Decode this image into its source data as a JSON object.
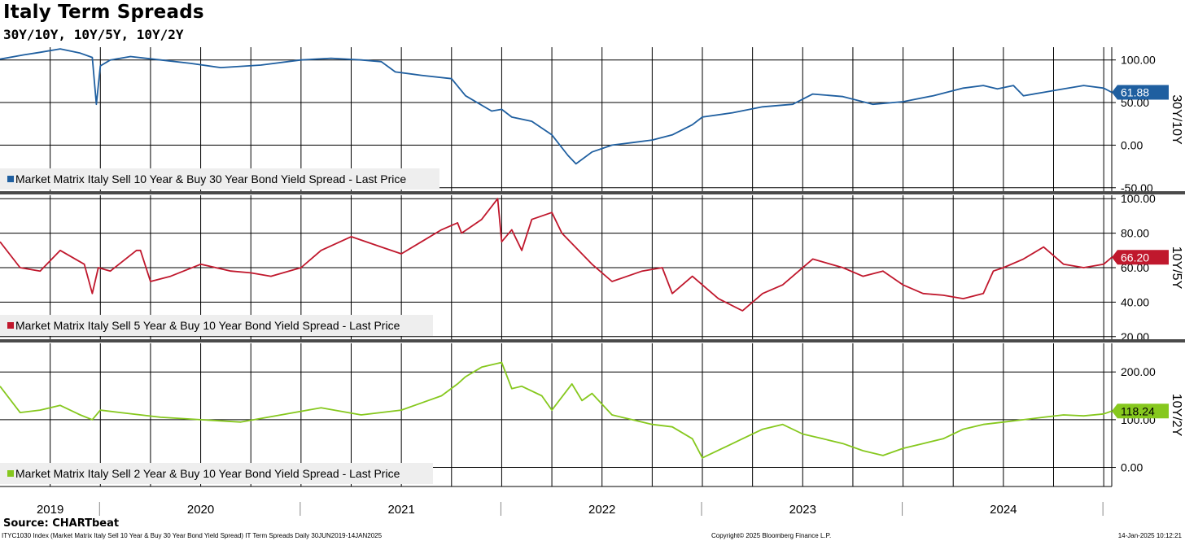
{
  "title": "Italy Term Spreads",
  "subtitle": "30Y/10Y, 10Y/5Y, 10Y/2Y",
  "source": "Source: CHARTbeat",
  "footer": {
    "left": "ITYC1030 Index (Market Matrix Italy Sell 10 Year & Buy 30 Year Bond Yield Spread) IT Term Spreads  Daily 30JUN2019-14JAN2025",
    "center": "Copyright© 2025 Bloomberg Finance L.P.",
    "right": "14-Jan-2025 10:12:21"
  },
  "colors": {
    "s30y10y": "#1f5fa0",
    "s10y5y": "#c0182d",
    "s10y2y": "#86c81e",
    "grid": "#000000",
    "divider": "#4a4a4a",
    "legend_bg": "#eeeeee"
  },
  "chart_data": [
    {
      "type": "line",
      "panel_label": "30Y/10Y",
      "legend": "Market Matrix Italy Sell 10 Year & Buy 30 Year Bond Yield Spread - Last Price",
      "last_value": "61.88",
      "y_ticks": [
        "100.00",
        "50.00",
        "0.00",
        "-50.00"
      ],
      "y_tick_values": [
        100,
        50,
        0,
        -50
      ],
      "ylim": [
        -55,
        115
      ],
      "x": [
        2019.5,
        2019.62,
        2019.7,
        2019.8,
        2019.9,
        2019.96,
        2019.98,
        2020.0,
        2020.05,
        2020.15,
        2020.3,
        2020.45,
        2020.6,
        2020.8,
        2021.0,
        2021.15,
        2021.3,
        2021.4,
        2021.47,
        2021.6,
        2021.75,
        2021.82,
        2021.95,
        2022.0,
        2022.05,
        2022.15,
        2022.25,
        2022.33,
        2022.37,
        2022.45,
        2022.55,
        2022.65,
        2022.75,
        2022.85,
        2022.95,
        2023.0,
        2023.15,
        2023.3,
        2023.45,
        2023.55,
        2023.7,
        2023.85,
        2024.0,
        2024.15,
        2024.3,
        2024.4,
        2024.47,
        2024.55,
        2024.6,
        2024.7,
        2024.8,
        2024.9,
        2025.0,
        2025.04
      ],
      "y": [
        101,
        106,
        109,
        113,
        108,
        103,
        48,
        93,
        100,
        104,
        100,
        96,
        91,
        94,
        100,
        102,
        100,
        98,
        86,
        82,
        78,
        58,
        40,
        42,
        33,
        28,
        12,
        -12,
        -22,
        -8,
        0,
        3,
        6,
        12,
        24,
        33,
        38,
        45,
        48,
        60,
        57,
        48,
        51,
        58,
        67,
        70,
        66,
        70,
        58,
        62,
        66,
        70,
        67,
        62
      ]
    },
    {
      "type": "line",
      "panel_label": "10Y/5Y",
      "legend": "Market Matrix Italy Sell 5 Year & Buy 10 Year Bond Yield Spread - Last Price",
      "last_value": "66.20",
      "y_ticks": [
        "100.00",
        "80.00",
        "60.00",
        "40.00",
        "20.00"
      ],
      "y_tick_values": [
        100,
        80,
        60,
        40,
        20
      ],
      "ylim": [
        18,
        102
      ],
      "x": [
        2019.5,
        2019.6,
        2019.7,
        2019.8,
        2019.92,
        2019.96,
        2019.99,
        2020.05,
        2020.18,
        2020.2,
        2020.25,
        2020.35,
        2020.5,
        2020.65,
        2020.75,
        2020.85,
        2021.0,
        2021.1,
        2021.25,
        2021.4,
        2021.5,
        2021.6,
        2021.7,
        2021.78,
        2021.8,
        2021.9,
        2021.98,
        2022.0,
        2022.05,
        2022.1,
        2022.15,
        2022.25,
        2022.3,
        2022.45,
        2022.55,
        2022.7,
        2022.8,
        2022.85,
        2022.95,
        2023.0,
        2023.08,
        2023.2,
        2023.3,
        2023.4,
        2023.55,
        2023.7,
        2023.8,
        2023.9,
        2024.0,
        2024.1,
        2024.2,
        2024.3,
        2024.4,
        2024.45,
        2024.5,
        2024.6,
        2024.7,
        2024.8,
        2024.9,
        2025.0,
        2025.04
      ],
      "y": [
        75,
        60,
        58,
        70,
        62,
        45,
        60,
        58,
        70,
        70,
        52,
        55,
        62,
        58,
        57,
        55,
        60,
        70,
        78,
        72,
        68,
        75,
        82,
        86,
        80,
        88,
        100,
        75,
        82,
        70,
        88,
        92,
        80,
        62,
        52,
        58,
        60,
        45,
        55,
        50,
        42,
        35,
        45,
        50,
        65,
        60,
        55,
        58,
        50,
        45,
        44,
        42,
        45,
        58,
        60,
        65,
        72,
        62,
        60,
        62,
        66
      ]
    },
    {
      "type": "line",
      "panel_label": "10Y/2Y",
      "legend": "Market Matrix Italy Sell 2 Year & Buy 10 Year Bond Yield Spread - Last Price",
      "last_value": "118.24",
      "y_ticks": [
        "200.00",
        "100.00",
        "0.00"
      ],
      "y_tick_values": [
        200,
        100,
        0
      ],
      "ylim": [
        -40,
        260
      ],
      "x": [
        2019.5,
        2019.6,
        2019.7,
        2019.8,
        2019.9,
        2019.96,
        2020.0,
        2020.1,
        2020.3,
        2020.5,
        2020.7,
        2020.9,
        2021.1,
        2021.3,
        2021.5,
        2021.6,
        2021.7,
        2021.78,
        2021.82,
        2021.9,
        2022.0,
        2022.05,
        2022.1,
        2022.2,
        2022.25,
        2022.35,
        2022.4,
        2022.45,
        2022.55,
        2022.65,
        2022.75,
        2022.85,
        2022.95,
        2023.0,
        2023.1,
        2023.2,
        2023.3,
        2023.4,
        2023.5,
        2023.6,
        2023.7,
        2023.8,
        2023.9,
        2024.0,
        2024.1,
        2024.2,
        2024.3,
        2024.4,
        2024.5,
        2024.6,
        2024.7,
        2024.8,
        2024.9,
        2025.0,
        2025.04
      ],
      "y": [
        170,
        115,
        120,
        130,
        110,
        100,
        120,
        115,
        105,
        100,
        95,
        110,
        125,
        110,
        120,
        135,
        150,
        175,
        190,
        210,
        220,
        165,
        170,
        150,
        120,
        175,
        140,
        155,
        110,
        100,
        90,
        85,
        60,
        20,
        40,
        60,
        80,
        90,
        70,
        60,
        50,
        35,
        25,
        40,
        50,
        60,
        80,
        90,
        95,
        100,
        105,
        110,
        108,
        112,
        118
      ]
    }
  ],
  "x_axis": {
    "year_labels": [
      "2019",
      "2020",
      "2021",
      "2022",
      "2023",
      "2024"
    ],
    "year_label_positions": [
      2019.75,
      2020.5,
      2021.5,
      2022.5,
      2023.5,
      2024.5
    ],
    "year_boundaries": [
      2020,
      2021,
      2022,
      2023,
      2024,
      2025
    ],
    "xlim": [
      2019.5,
      2025.04
    ]
  }
}
